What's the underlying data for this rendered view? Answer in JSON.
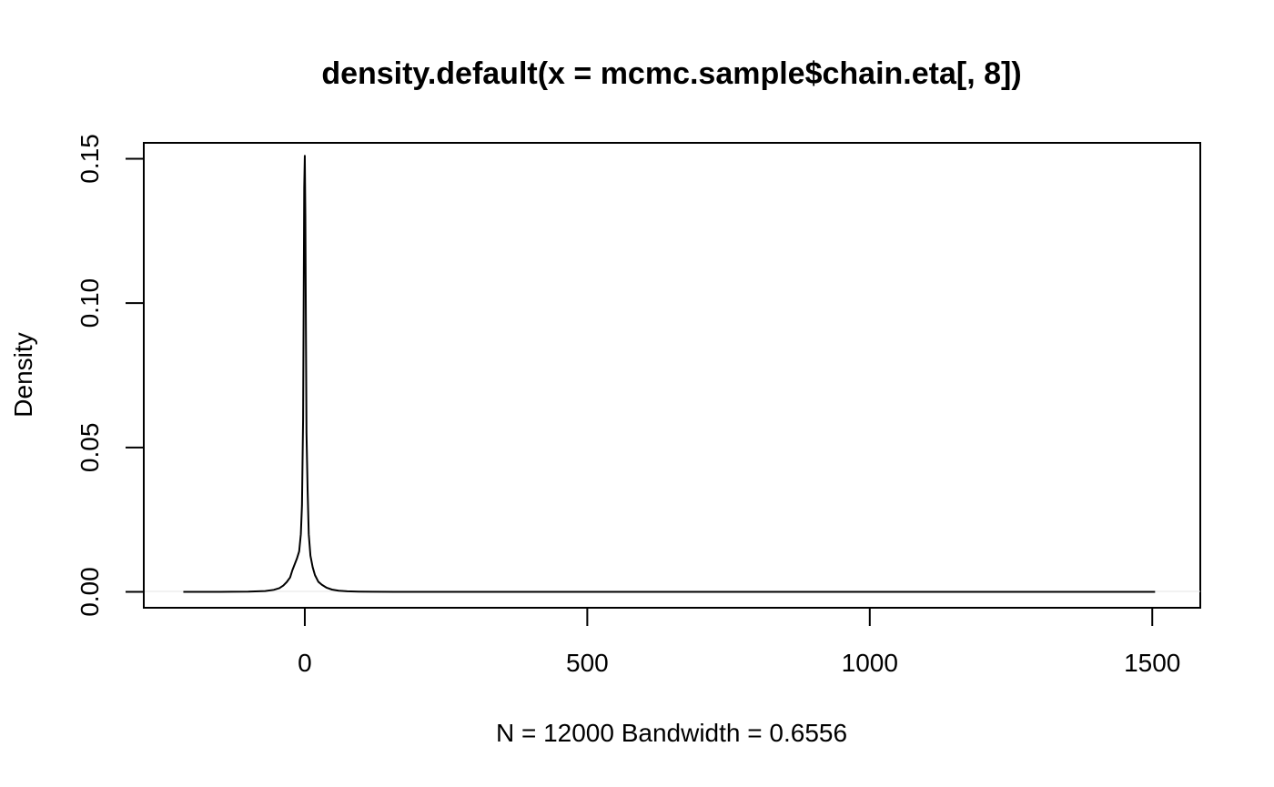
{
  "chart_data": {
    "type": "line",
    "title": "density.default(x = mcmc.sample$chain.eta[, 8])",
    "xlabel": "N = 12000   Bandwidth = 0.6556",
    "ylabel": "Density",
    "xlim": [
      -285,
      1585
    ],
    "ylim": [
      -0.0055,
      0.1555
    ],
    "xticks": [
      0,
      500,
      1000,
      1500
    ],
    "xtick_labels": [
      "0",
      "500",
      "1000",
      "1500"
    ],
    "yticks": [
      0,
      0.05,
      0.1,
      0.15
    ],
    "ytick_labels": [
      "0.00",
      "0.05",
      "0.10",
      "0.15"
    ],
    "grid": false,
    "series": [
      {
        "x": [
          -215,
          -150,
          -100,
          -70,
          -55,
          -45,
          -38,
          -32,
          -26,
          -22,
          -18,
          -14,
          -10,
          -7,
          -5,
          -3,
          -2,
          -1,
          0,
          1,
          2,
          3,
          5,
          7,
          10,
          14,
          18,
          24,
          30,
          38,
          48,
          60,
          75,
          95,
          120,
          160,
          250,
          500,
          1000,
          1505
        ],
        "y": [
          0,
          0,
          0.0001,
          0.0003,
          0.0007,
          0.0013,
          0.0022,
          0.0034,
          0.005,
          0.0075,
          0.0095,
          0.0115,
          0.014,
          0.02,
          0.03,
          0.06,
          0.1,
          0.14,
          0.151,
          0.13,
          0.09,
          0.055,
          0.035,
          0.02,
          0.0125,
          0.0085,
          0.0058,
          0.0035,
          0.0025,
          0.0015,
          0.0008,
          0.0004,
          0.0002,
          0.0001,
          5e-05,
          0,
          0,
          0,
          0,
          0
        ]
      }
    ]
  }
}
